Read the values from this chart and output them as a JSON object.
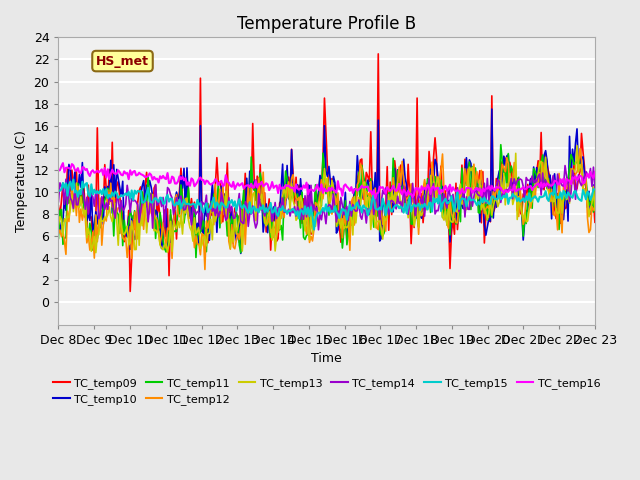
{
  "title": "Temperature Profile B",
  "xlabel": "Time",
  "ylabel": "Temperature (C)",
  "ylim": [
    -2,
    24
  ],
  "yticks": [
    0,
    2,
    4,
    6,
    8,
    10,
    12,
    14,
    16,
    18,
    20,
    22,
    24
  ],
  "xticklabels": [
    "Dec 8",
    "Dec 9",
    "Dec 10",
    "Dec 11",
    "Dec 12",
    "Dec 13",
    "Dec 14",
    "Dec 15",
    "Dec 16",
    "Dec 17",
    "Dec 18",
    "Dec 19",
    "Dec 20",
    "Dec 21",
    "Dec 22",
    "Dec 23"
  ],
  "annotation_text": "HS_met",
  "annotation_color": "#8B0000",
  "annotation_bg": "#FFFF99",
  "annotation_border": "#8B6914",
  "series": {
    "TC_temp09": {
      "color": "#FF0000",
      "lw": 1.2
    },
    "TC_temp10": {
      "color": "#0000CC",
      "lw": 1.2
    },
    "TC_temp11": {
      "color": "#00CC00",
      "lw": 1.2
    },
    "TC_temp12": {
      "color": "#FF8C00",
      "lw": 1.2
    },
    "TC_temp13": {
      "color": "#CCCC00",
      "lw": 1.2
    },
    "TC_temp14": {
      "color": "#9900CC",
      "lw": 1.2
    },
    "TC_temp15": {
      "color": "#00CCCC",
      "lw": 1.5
    },
    "TC_temp16": {
      "color": "#FF00FF",
      "lw": 1.5
    }
  },
  "bg_color": "#E8E8E8",
  "plot_bg": "#F0F0F0",
  "grid_color": "white",
  "title_fontsize": 12,
  "axis_fontsize": 9,
  "legend_fontsize": 8
}
